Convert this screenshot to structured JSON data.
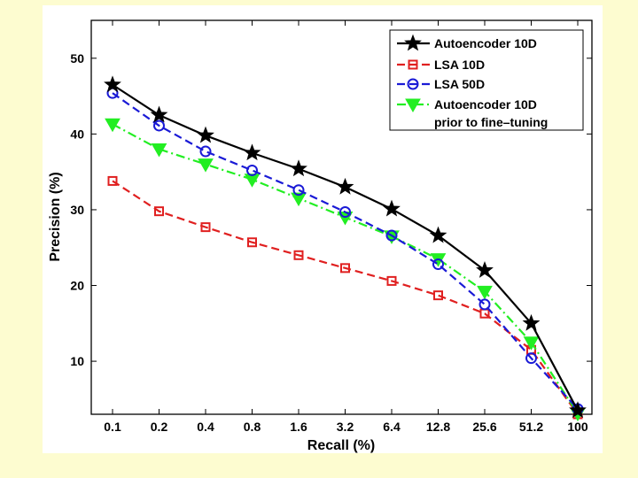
{
  "chart_data": {
    "type": "line",
    "title": "",
    "xlabel": "Recall (%)",
    "ylabel": "Precision (%)",
    "categories": [
      "0.1",
      "0.2",
      "0.4",
      "0.8",
      "1.6",
      "3.2",
      "6.4",
      "12.8",
      "25.6",
      "51.2",
      "100"
    ],
    "ylim": [
      3,
      55
    ],
    "yticks": [
      10,
      20,
      30,
      40,
      50
    ],
    "grid": false,
    "legend_position": "top-right",
    "series": [
      {
        "name": "Autoencoder 10D",
        "color": "#000000",
        "marker": "star",
        "dash": "solid",
        "values": [
          46.5,
          42.5,
          39.8,
          37.5,
          35.4,
          33.0,
          30.1,
          26.6,
          22.0,
          15.0,
          3.5
        ]
      },
      {
        "name": "LSA 10D",
        "color": "#e02020",
        "marker": "square",
        "dash": "dashed",
        "values": [
          33.8,
          29.8,
          27.7,
          25.7,
          24.0,
          22.3,
          20.6,
          18.7,
          16.3,
          11.5,
          3.0
        ]
      },
      {
        "name": "LSA 50D",
        "color": "#1a1ad6",
        "marker": "circle",
        "dash": "dashed",
        "values": [
          45.4,
          41.1,
          37.7,
          35.2,
          32.6,
          29.7,
          26.6,
          22.8,
          17.5,
          10.4,
          3.7
        ]
      },
      {
        "name": "Autoencoder 10D prior to fine-tuning",
        "legend_lines": [
          "Autoencoder 10D",
          "prior to fine–tuning"
        ],
        "color": "#22ee22",
        "marker": "triangle-down",
        "dash": "dashdot",
        "values": [
          41.3,
          38.0,
          36.0,
          34.0,
          31.5,
          29.0,
          26.5,
          23.5,
          19.2,
          12.5,
          3.1
        ]
      }
    ]
  }
}
